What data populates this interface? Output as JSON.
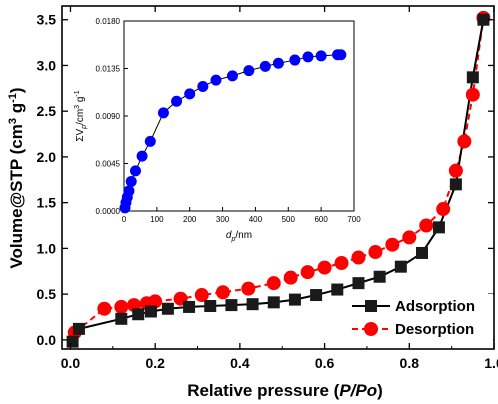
{
  "chart_data": [
    {
      "type": "line",
      "title": "",
      "xlabel": "Relative pressure (P/Po)",
      "xlabel_prefix": "Relative pressure (",
      "xlabel_italic": "P/Po",
      "xlabel_suffix": ")",
      "ylabel": "Volume@STP (cm³ g⁻¹)",
      "ylabel_main": "Volume@STP (cm",
      "ylabel_sup1": "3",
      "ylabel_mid": " g",
      "ylabel_sup2": "-1",
      "ylabel_end": ")",
      "xlim": [
        -0.02,
        1.0
      ],
      "ylim": [
        -0.1,
        3.65
      ],
      "xticks": [
        "0.0",
        "0.2",
        "0.4",
        "0.6",
        "0.8",
        "1.0"
      ],
      "yticks": [
        "0.0",
        "0.5",
        "1.0",
        "1.5",
        "2.0",
        "2.5",
        "3.0",
        "3.5"
      ],
      "legend_position": "bottom-right",
      "series": [
        {
          "name": "Adsorption",
          "marker": "square",
          "color": "#000000",
          "line_style": "solid",
          "x": [
            0.005,
            0.02,
            0.12,
            0.16,
            0.19,
            0.23,
            0.28,
            0.33,
            0.38,
            0.43,
            0.48,
            0.53,
            0.58,
            0.63,
            0.68,
            0.73,
            0.78,
            0.83,
            0.87,
            0.91,
            0.95,
            0.975
          ],
          "y": [
            -0.02,
            0.12,
            0.23,
            0.28,
            0.31,
            0.34,
            0.36,
            0.37,
            0.38,
            0.39,
            0.41,
            0.44,
            0.49,
            0.55,
            0.62,
            0.69,
            0.8,
            0.95,
            1.23,
            1.7,
            2.87,
            3.5
          ]
        },
        {
          "name": "Desorption",
          "marker": "circle",
          "color": "#ff0000",
          "line_style": "dashed",
          "x": [
            0.01,
            0.08,
            0.12,
            0.15,
            0.18,
            0.2,
            0.26,
            0.31,
            0.36,
            0.42,
            0.48,
            0.52,
            0.56,
            0.6,
            0.64,
            0.68,
            0.72,
            0.76,
            0.8,
            0.84,
            0.88,
            0.91,
            0.93,
            0.95,
            0.975
          ],
          "y": [
            0.08,
            0.34,
            0.36,
            0.38,
            0.4,
            0.42,
            0.45,
            0.49,
            0.52,
            0.56,
            0.62,
            0.68,
            0.74,
            0.79,
            0.84,
            0.9,
            0.96,
            1.04,
            1.12,
            1.25,
            1.43,
            1.85,
            2.17,
            2.68,
            3.52
          ]
        }
      ]
    },
    {
      "type": "line",
      "title": "",
      "xlabel": "dp/nm",
      "xlabel_base": "d",
      "xlabel_sub": "p",
      "xlabel_tail": "/nm",
      "ylabel": "ΣVp/cm³ g⁻¹",
      "ylabel_base": "ΣV",
      "ylabel_sub": "p",
      "ylabel_mid": "/cm",
      "ylabel_sup1": "3",
      "ylabel_mid2": " g",
      "ylabel_sup2": "-1",
      "xlim": [
        0,
        700
      ],
      "ylim": [
        0,
        0.018
      ],
      "xticks": [
        "0",
        "100",
        "200",
        "300",
        "400",
        "500",
        "600",
        "700"
      ],
      "yticks": [
        "0.0000",
        "0.0045",
        "0.0090",
        "0.0135",
        "0.0180"
      ],
      "series": [
        {
          "name": "",
          "marker": "circle",
          "color": "#0000ff",
          "x": [
            3,
            6,
            10,
            15,
            22,
            35,
            55,
            80,
            120,
            160,
            200,
            240,
            280,
            330,
            380,
            430,
            470,
            520,
            560,
            600,
            650,
            660
          ],
          "y": [
            0.0003,
            0.0008,
            0.0013,
            0.0019,
            0.0028,
            0.0038,
            0.0052,
            0.0066,
            0.0093,
            0.0104,
            0.0111,
            0.0118,
            0.0124,
            0.0128,
            0.0133,
            0.0137,
            0.014,
            0.0143,
            0.0146,
            0.0147,
            0.0148,
            0.0148
          ]
        }
      ]
    }
  ]
}
